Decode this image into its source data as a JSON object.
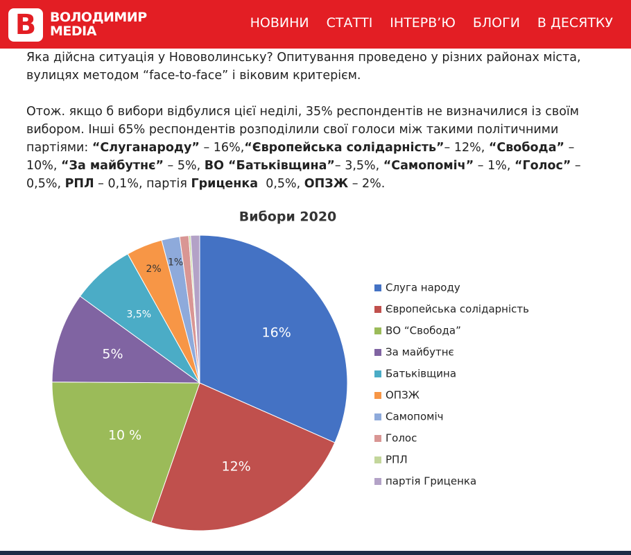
{
  "header": {
    "logo_top": "ВОЛОДИМИР",
    "logo_bottom": "MEDIA",
    "nav": [
      "НОВИНИ",
      "СТАТТІ",
      "ІНТЕРВ’Ю",
      "БЛОГИ",
      "В ДЕСЯТКУ"
    ]
  },
  "paragraphs": [
    {
      "runs": [
        {
          "text": "Яка дійсна ситуація у Нововолинську? Опитування проведено у різних районах міста, вулицях методом “face-to-face” і віковим критерієм.",
          "bold": false
        }
      ]
    },
    {
      "runs": [
        {
          "text": "Отож. якщо б вибори відбулися цієї неділі, 35% респондентів не визначилися із своїм вибором. Інші 65% респондентів розподілили свої голоси між такими політичними партіями: ",
          "bold": false
        },
        {
          "text": "“Слуганароду”",
          "bold": true
        },
        {
          "text": " – 16%,",
          "bold": false
        },
        {
          "text": "“Європейська солідарність”",
          "bold": true
        },
        {
          "text": "– 12%, ",
          "bold": false
        },
        {
          "text": "“Свобода”",
          "bold": true
        },
        {
          "text": " – 10%, ",
          "bold": false
        },
        {
          "text": "“За майбутнє”",
          "bold": true
        },
        {
          "text": " – 5%, ",
          "bold": false
        },
        {
          "text": "ВО “Батьківщина”",
          "bold": true
        },
        {
          "text": "– 3,5%, ",
          "bold": false
        },
        {
          "text": "“Самопоміч”",
          "bold": true
        },
        {
          "text": " – 1%, ",
          "bold": false
        },
        {
          "text": "“Голос”",
          "bold": true
        },
        {
          "text": " – 0,5%, ",
          "bold": false
        },
        {
          "text": "РПЛ",
          "bold": true
        },
        {
          "text": " – 0,1%, партія ",
          "bold": false
        },
        {
          "text": "Гриценка",
          "bold": true
        },
        {
          "text": "  0,5%, ",
          "bold": false
        },
        {
          "text": "ОПЗЖ",
          "bold": true
        },
        {
          "text": " – 2%.",
          "bold": false
        }
      ]
    }
  ],
  "chart_data": {
    "type": "pie",
    "title": "Вибори 2020",
    "categories": [
      "Слуга народу",
      "Європейська солідарність",
      "ВО “Свобода”",
      "За майбутнє",
      "Батьківщина",
      "ОПЗЖ",
      "Самопоміч",
      "Голос",
      "РПЛ",
      "партія Гриценка"
    ],
    "values": [
      16,
      12,
      10,
      5,
      3.5,
      2,
      1,
      0.5,
      0.1,
      0.5
    ],
    "value_labels": [
      "16%",
      "12%",
      "10 %",
      "5%",
      "3,5%",
      "2%",
      "1%",
      null,
      null,
      null
    ],
    "colors": [
      "#4472c4",
      "#c0504d",
      "#9bbb59",
      "#8064a2",
      "#4bacc6",
      "#f79646",
      "#8eaadb",
      "#d99694",
      "#c3d69b",
      "#b3a2c7"
    ],
    "legend": "right"
  }
}
